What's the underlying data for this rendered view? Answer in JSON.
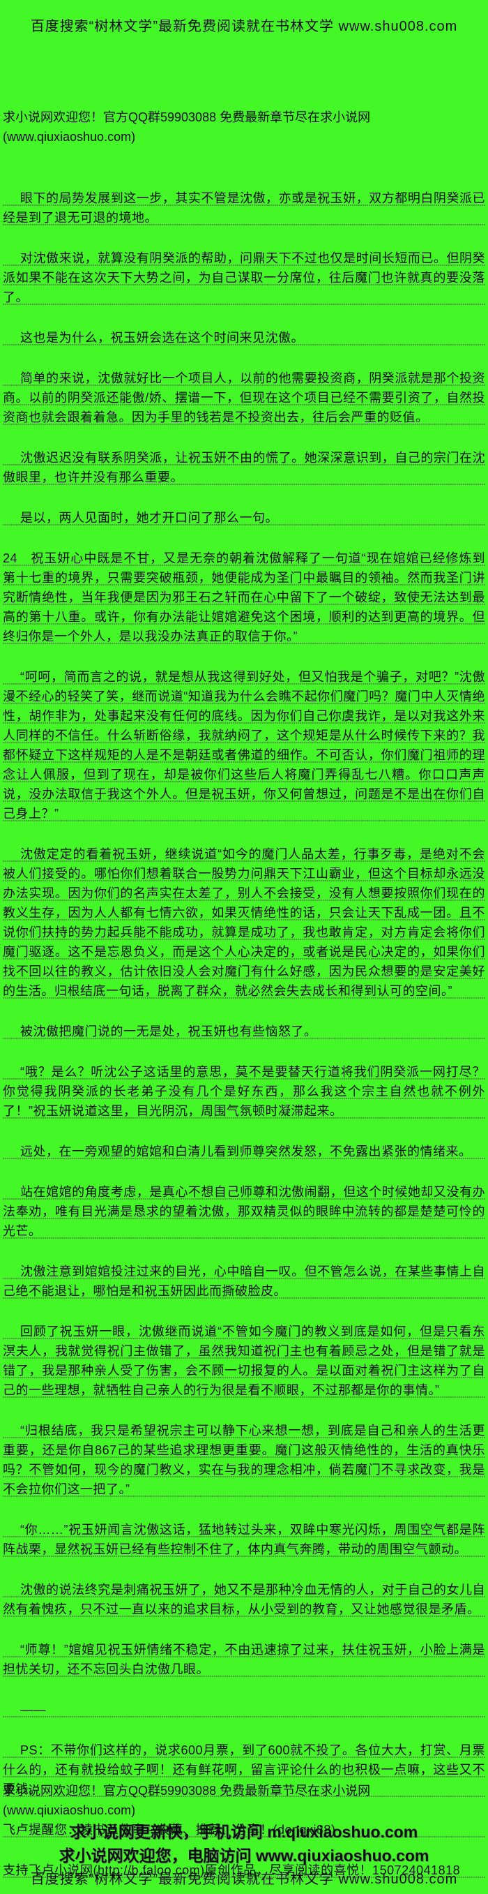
{
  "colors": {
    "background": "#44f727",
    "text": "#0c0c14",
    "dotted_rule": "#606460"
  },
  "top_banner": "百度搜索“树林文学”最新免费阅读就在书林文学 www.shu008.com",
  "welcome_line": "求小说网欢迎您！官方QQ群59903088 免费最新章节尽在求小说网(www.qiuxiaoshuo.com)",
  "paragraphs": [
    {
      "indent": true,
      "text": "眼下的局势发展到这一步，其实不管是沈傲，亦或是祝玉妍，双方都明白阴癸派已经是到了退无可退的境地。"
    },
    {
      "indent": true,
      "text": "对沈傲来说，就算没有阴癸派的帮助，问鼎天下不过也仅是时间长短而已。但阴癸派如果不能在这次天下大势之间，为自己谋取一分席位，往后魔门也许就真的要没落了。"
    },
    {
      "indent": true,
      "text": "这也是为什么，祝玉妍会选在这个时间来见沈傲。"
    },
    {
      "indent": true,
      "text": "简单的来说，沈傲就好比一个项目人，以前的他需要投资商，阴癸派就是那个投资商。以前的阴癸派还能傲/娇、摆谱一下，但现在这个项目已经不需要引资了，自然投资商也就会跟着着急。因为手里的钱若是不投资出去，往后会严重的贬值。"
    },
    {
      "indent": true,
      "text": "沈傲迟迟没有联系阴癸派，让祝玉妍不由的慌了。她深深意识到，自己的宗门在沈傲眼里，也许并没有那么重要。"
    },
    {
      "indent": true,
      "text": "是以，两人见面时，她才开口问了那么一句。"
    },
    {
      "indent": false,
      "text": "24　祝玉妍心中既是不甘，又是无奈的朝着沈傲解释了一句道“现在婠婠已经修炼到第十七重的境界，只需要突破瓶颈，她便能成为圣门中最瞩目的领袖。然而我圣门讲究断情绝性，当年我便是因为邪王石之轩而在心中留下了一个破绽，致使无法达到最高的第十八重。或许，你有办法能让婠婠避免这个困境，顺利的达到更高的境界。但终归你是一个外人，是以我没办法真正的取信于你。”"
    },
    {
      "indent": true,
      "text": "“呵呵，简而言之的说，就是想从我这得到好处，但又怕我是个骗子，对吧？”沈傲漫不经心的轻笑了笑，继而说道“知道我为什么会瞧不起你们魔门吗？魔门中人灭情绝性，胡作非为，处事起来没有任何的底线。因为你们自己你虞我诈，是以对我这外来人同样的不信任。什么斩断俗缘，我就纳闷了，这个规矩是从什么时候传下来的？我都怀疑立下这样规矩的人是不是朝廷或者佛道的细作。不可否认，你们魔门祖师的理念让人佩服，但到了现在，却是被你们这些后人将魔门弄得乱七八糟。你口口声声说，没办法取信于我这个外人。但是祝玉妍，你又何曾想过，问题是不是出在你们自己身上？”"
    },
    {
      "indent": true,
      "text": "沈傲定定的看着祝玉妍，继续说道“如今的魔门人品太差，行事歹毒，是绝对不会被人们接受的。哪怕你们想着联合一股势力问鼎天下江山霸业，但这个目标却永远没办法实现。因为你们的名声实在太差了，别人不会接受，没有人想要按照你们现在的教义生存，因为人人都有七情六欲，如果灭情绝性的话，只会让天下乱成一团。且不说你们扶持的势力起兵能不能成功，就算是成功了，我也敢肯定，对方肯定会将你们魔门驱逐。这不是忘恩负义，而是这个人心决定的，或者说是民心决定的，如果你们找不回以往的教义，估计依旧没人会对魔门有什么好感，因为民众想要的是安定美好的生活。归根结底一句话，脱离了群众，就必然会失去成长和得到认可的空间。”"
    },
    {
      "indent": true,
      "text": "被沈傲把魔门说的一无是处，祝玉妍也有些恼怒了。"
    },
    {
      "indent": true,
      "text": "“哦？是么？听沈公子这话里的意思，莫不是要替天行道将我们阴癸派一网打尽？你觉得我阴癸派的长老弟子没有几个是好东西，那么我这个宗主自然也就不例外了！”祝玉妍说道这里，目光阴沉，周围气氛顿时凝滞起来。"
    },
    {
      "indent": true,
      "text": "远处，在一旁观望的婠婠和白清儿看到师尊突然发怒，不免露出紧张的情绪来。"
    },
    {
      "indent": true,
      "text": "站在婠婠的角度考虑，是真心不想自己师尊和沈傲闹翻，但这个时候她却又没有办法奉劝，唯有目光满是恳求的望着沈傲，那双精灵似的眼眸中流转的都是楚楚可怜的光芒。"
    },
    {
      "indent": true,
      "text": "沈傲注意到婠婠投注过来的目光，心中暗自一叹。但不管怎么说，在某些事情上自己绝不能退让，哪怕是和祝玉妍因此而撕破脸皮。"
    },
    {
      "indent": true,
      "text": "回顾了祝玉妍一眼，沈傲继而说道“不管如今魔门的教义到底是如何，但是只看东溟夫人，我就觉得祝门主做错了，虽然我知道祝门主也有着顾忌之处，但是错了就是错了，我是那种亲人受了伤害，会不顾一切报复的人。是以面对着祝门主这样为了自己的一些理想，就牺牲自己亲人的行为很是看不顺眼，不过那都是你的事情。”"
    },
    {
      "indent": true,
      "text": "“归根结底，我只是希望祝宗主可以静下心来想一想，到底是自己和亲人的生活更重要，还是你自867己的某些追求理想更重要。魔门这般灭情绝性的，生活的真快乐吗？不管如何，现今的魔门教义，实在与我的理念相冲，倘若魔门不寻求改变，我是不会拉你们这一把了。”"
    },
    {
      "indent": true,
      "text": "“你……”祝玉妍闻言沈傲这话，猛地转过头来，双眸中寒光闪烁，周围空气都是阵阵战栗，显然祝玉妍已经有些控制不住了，体内真气奔腾，带动的周围空气颤动。"
    },
    {
      "indent": true,
      "text": "沈傲的说法终究是刺痛祝玉妍了，她又不是那种冷血无情的人，对于自己的女儿自然有着愧疚，只不过一直以来的追求目标，从小受到的教育，又让她感觉很是矛盾。"
    },
    {
      "indent": true,
      "text": "“师尊！”婠婠见祝玉妍情绪不稳定，不由迅速掠了过来，扶住祝玉妍，小脸上满是担忧关切，还不忘回头白沈傲几眼。"
    },
    {
      "indent": true,
      "text": "——"
    },
    {
      "indent": true,
      "text": "PS：不带你们这样的，说求600月票，到了600就不投了。各位大大，打赏、月票什么的，还有就投给蚊子啊！还有鲜花啊，留言评论什么的也积极一点嘛，这些又不要钱。"
    },
    {
      "indent": false,
      "text": "飞卢提醒您：读书三件事 - 收藏、推荐、分享！(dongxi88)"
    },
    {
      "indent": false,
      "text": "支持飞卢小说网(http://b.faloo.com)原创作品，尽享阅读的喜悦！150724041818"
    }
  ],
  "footer": {
    "welcome_line": "求小说网欢迎您！官方QQ群59903088 免费最新章节尽在求小说网(www.qiuxiaoshuo.com)",
    "mobile_line": "求小说网更新快，手机访问 m.qiuxiaoshuo.com",
    "pc_line": "求小说网欢迎您，电脑访问 www.qiuxiaoshuo.com",
    "banner": "百度搜索“树林文学”最新免费阅读就在书林文学 www.shu008.com"
  }
}
